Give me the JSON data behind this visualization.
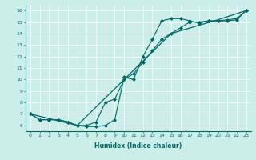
{
  "xlabel": "Humidex (Indice chaleur)",
  "bg_color": "#cceee8",
  "line_color": "#006666",
  "grid_color": "#aadddd",
  "xlim": [
    -0.5,
    23.5
  ],
  "ylim": [
    5.5,
    16.5
  ],
  "xticks": [
    0,
    1,
    2,
    3,
    4,
    5,
    6,
    7,
    8,
    9,
    10,
    11,
    12,
    13,
    14,
    15,
    16,
    17,
    18,
    19,
    20,
    21,
    22,
    23
  ],
  "yticks": [
    6,
    7,
    8,
    9,
    10,
    11,
    12,
    13,
    14,
    15,
    16
  ],
  "curve1_x": [
    0,
    1,
    2,
    3,
    4,
    5,
    6,
    7,
    8,
    9,
    10,
    11,
    12,
    13,
    14,
    15,
    16,
    17,
    18,
    19,
    20,
    21,
    22,
    23
  ],
  "curve1_y": [
    7.0,
    6.5,
    6.5,
    6.5,
    6.3,
    6.0,
    5.9,
    5.9,
    6.0,
    6.5,
    10.2,
    10.0,
    12.0,
    13.5,
    15.1,
    15.3,
    15.3,
    15.1,
    14.9,
    15.1,
    15.1,
    15.1,
    15.2,
    16.0
  ],
  "curve2_x": [
    0,
    1,
    2,
    3,
    4,
    5,
    6,
    7,
    8,
    9,
    10,
    11,
    12,
    13,
    14,
    15,
    16,
    17,
    18,
    19,
    20,
    21,
    22,
    23
  ],
  "curve2_y": [
    7.0,
    6.5,
    6.5,
    6.5,
    6.3,
    6.0,
    6.0,
    6.3,
    8.0,
    8.3,
    10.0,
    10.5,
    11.5,
    12.5,
    13.5,
    14.0,
    14.5,
    15.0,
    15.0,
    15.1,
    15.1,
    15.2,
    15.3,
    16.0
  ],
  "curve3_x": [
    0,
    5,
    10,
    15,
    20,
    23
  ],
  "curve3_y": [
    7.0,
    6.0,
    10.0,
    14.0,
    15.2,
    16.0
  ]
}
